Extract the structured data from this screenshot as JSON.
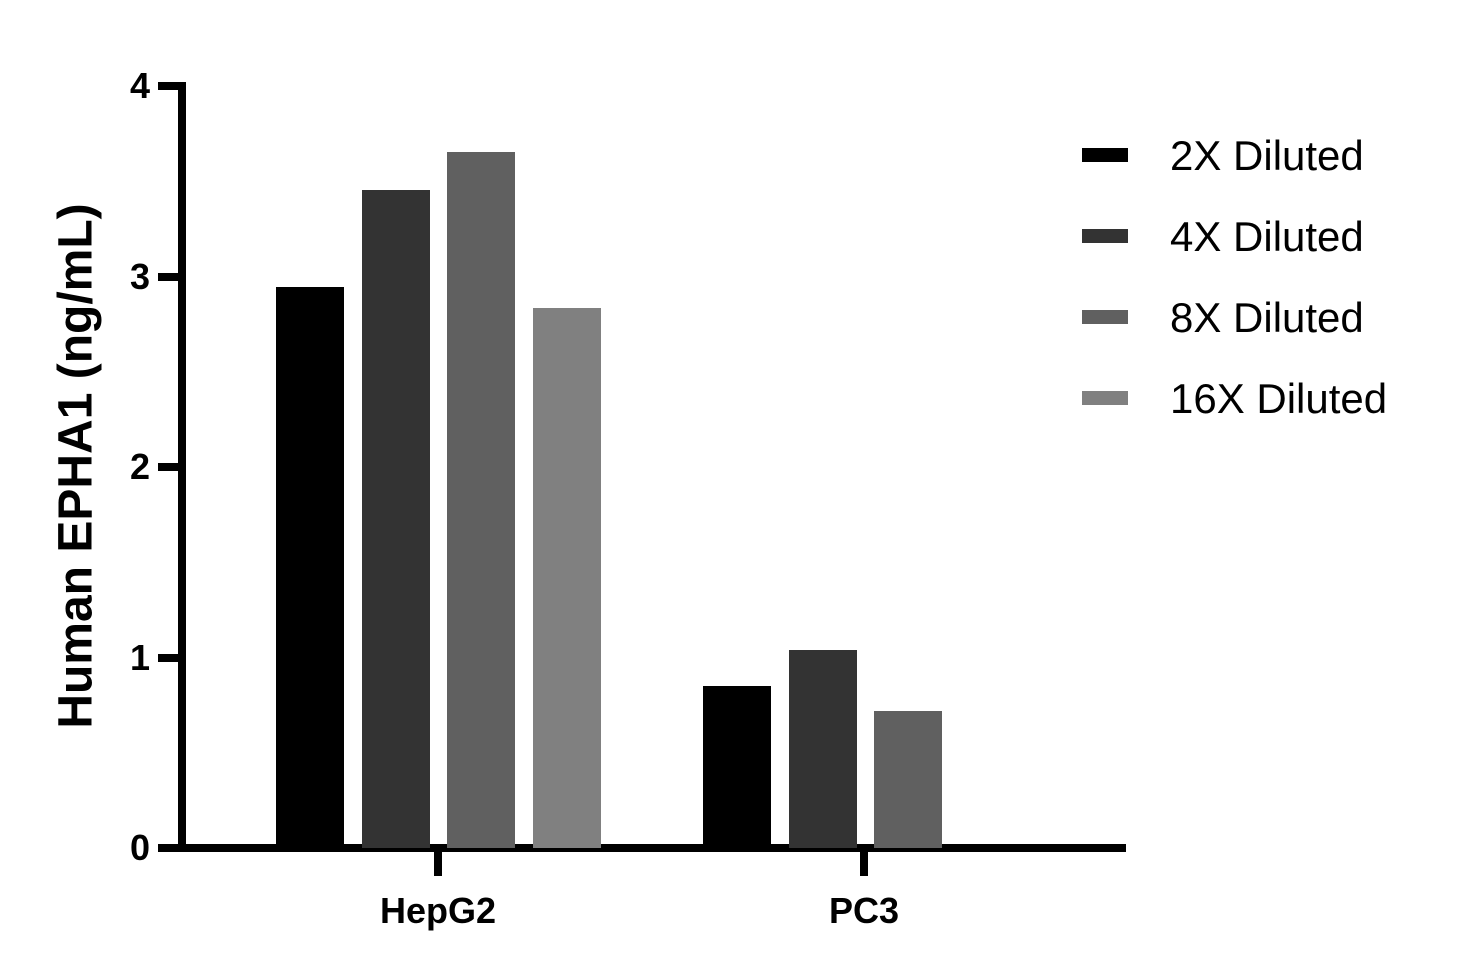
{
  "chart_data": {
    "type": "bar",
    "title": "",
    "xlabel": "",
    "ylabel": "Human EPHA1  (ng/mL)",
    "ylim": [
      0,
      4
    ],
    "yticks": [
      "0",
      "1",
      "2",
      "3",
      "4"
    ],
    "categories": [
      "HepG2",
      "PC3"
    ],
    "series": [
      {
        "name": "2X Diluted",
        "color": "#000000",
        "values": [
          2.94,
          0.85
        ]
      },
      {
        "name": "4X Diluted",
        "color": "#333333",
        "values": [
          3.45,
          1.04
        ]
      },
      {
        "name": "8X Diluted",
        "color": "#606060",
        "values": [
          3.65,
          0.72
        ]
      },
      {
        "name": "16X Diluted",
        "color": "#808080",
        "values": [
          2.83,
          null
        ]
      }
    ],
    "legend_position": "right",
    "grid": false
  }
}
